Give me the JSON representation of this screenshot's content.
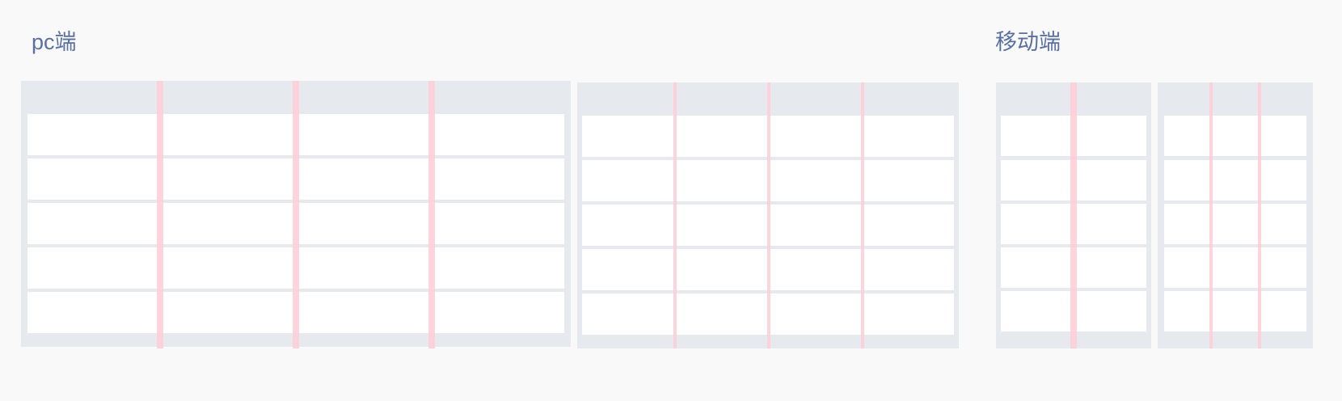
{
  "sections": {
    "pc": {
      "title": "pc端"
    },
    "mobile": {
      "title": "移动端"
    }
  },
  "colors": {
    "background": "#f9f9f9",
    "panel": "#e6e9ee",
    "row": "#ffffff",
    "gutter": "#ffcdd6",
    "title": "#5a70a2"
  },
  "grids": [
    {
      "id": "pc-grid-wide-gutter",
      "section": "pc",
      "columns": 4,
      "rows": 5,
      "gutter": "wide"
    },
    {
      "id": "pc-grid-narrow-gutter",
      "section": "pc",
      "columns": 4,
      "rows": 5,
      "gutter": "narrow"
    },
    {
      "id": "mobile-grid-two-columns",
      "section": "mobile",
      "columns": 2,
      "rows": 5,
      "gutter": "wide"
    },
    {
      "id": "mobile-grid-three-columns",
      "section": "mobile",
      "columns": 3,
      "rows": 5,
      "gutter": "narrow"
    }
  ]
}
